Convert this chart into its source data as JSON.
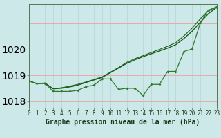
{
  "xlabel": "Graphe pression niveau de la mer (hPa)",
  "bg_color": "#cde8e8",
  "grid_color_h": "#e8aaaa",
  "grid_color_v": "#b8d8d8",
  "line_straight_color": "#1a5c1a",
  "line_jagged1_color": "#1a5c1a",
  "line_jagged2_color": "#2d7a2d",
  "x": [
    0,
    1,
    2,
    3,
    4,
    5,
    6,
    7,
    8,
    9,
    10,
    11,
    12,
    13,
    14,
    15,
    16,
    17,
    18,
    19,
    20,
    21,
    22,
    23
  ],
  "y_straight1": [
    1018.78,
    1018.68,
    1018.7,
    1018.48,
    1018.5,
    1018.55,
    1018.62,
    1018.72,
    1018.82,
    1018.92,
    1019.1,
    1019.28,
    1019.46,
    1019.6,
    1019.72,
    1019.83,
    1019.94,
    1020.05,
    1020.18,
    1020.42,
    1020.7,
    1021.05,
    1021.38,
    1021.62
  ],
  "y_straight2": [
    1018.78,
    1018.68,
    1018.7,
    1018.48,
    1018.52,
    1018.58,
    1018.65,
    1018.74,
    1018.84,
    1018.94,
    1019.12,
    1019.3,
    1019.5,
    1019.64,
    1019.76,
    1019.88,
    1020.0,
    1020.12,
    1020.26,
    1020.52,
    1020.82,
    1021.18,
    1021.5,
    1021.65
  ],
  "y_jagged": [
    1018.78,
    1018.68,
    1018.68,
    1018.38,
    1018.38,
    1018.38,
    1018.42,
    1018.56,
    1018.62,
    1018.86,
    1018.86,
    1018.46,
    1018.5,
    1018.5,
    1018.22,
    1018.65,
    1018.65,
    1019.15,
    1019.15,
    1019.92,
    1020.02,
    1021.02,
    1021.52,
    1021.62
  ],
  "ylim": [
    1017.75,
    1021.75
  ],
  "yticks": [
    1018,
    1019,
    1020
  ],
  "xlim": [
    0,
    23
  ],
  "fontsize_tick": 6,
  "fontsize_xlabel": 7
}
